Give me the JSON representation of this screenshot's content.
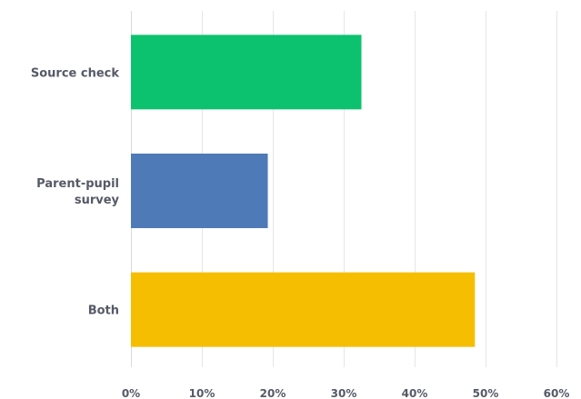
{
  "chart_data": {
    "type": "bar",
    "orientation": "horizontal",
    "categories": [
      [
        "Source check"
      ],
      [
        "Parent-pupil",
        "survey"
      ],
      [
        "Both"
      ]
    ],
    "values": [
      32.5,
      19.3,
      48.5
    ],
    "colors": [
      "#0cc26e",
      "#4e7ab8",
      "#f5be00"
    ],
    "xlim": [
      0,
      60
    ],
    "xticks": [
      "0%",
      "10%",
      "20%",
      "30%",
      "40%",
      "50%",
      "60%"
    ],
    "grid": true,
    "legend": "none"
  }
}
